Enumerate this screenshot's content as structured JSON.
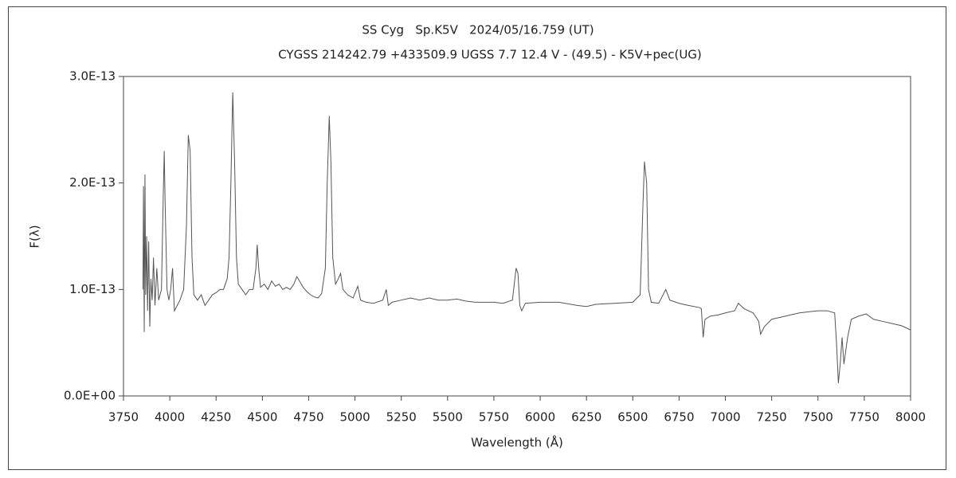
{
  "chart_data": {
    "type": "line",
    "title": "SS Cyg   Sp.K5V   2024/05/16.759 (UT)",
    "subtitle": "CYGSS 214242.79 +433509.9 UGSS 7.7 12.4 V - (49.5) - K5V+pec(UG)",
    "x_label": "Wavelength (Å)",
    "y_label": "F(λ)",
    "xlim": [
      3750,
      8000
    ],
    "xticks": [
      3750,
      4000,
      4250,
      4500,
      4750,
      5000,
      5250,
      5500,
      5750,
      6000,
      6250,
      6500,
      6750,
      7000,
      7250,
      7500,
      7750,
      8000
    ],
    "ylim": [
      0,
      3e-13
    ],
    "yticks": [
      {
        "value": 0,
        "label": "0.0E+00"
      },
      {
        "value": 1e-13,
        "label": "1.0E-13"
      },
      {
        "value": 2e-13,
        "label": "2.0E-13"
      },
      {
        "value": 3e-13,
        "label": "3.0E-13"
      }
    ],
    "grid": false,
    "x": [
      3855,
      3858,
      3862,
      3866,
      3870,
      3875,
      3880,
      3886,
      3892,
      3898,
      3905,
      3912,
      3920,
      3930,
      3940,
      3955,
      3965,
      3970,
      3975,
      3985,
      3995,
      4005,
      4015,
      4025,
      4040,
      4055,
      4075,
      4090,
      4100,
      4110,
      4120,
      4130,
      4150,
      4170,
      4190,
      4210,
      4230,
      4250,
      4270,
      4290,
      4310,
      4320,
      4330,
      4340,
      4350,
      4360,
      4370,
      4390,
      4410,
      4430,
      4450,
      4465,
      4472,
      4480,
      4490,
      4510,
      4530,
      4550,
      4570,
      4590,
      4610,
      4630,
      4650,
      4670,
      4686,
      4700,
      4720,
      4740,
      4760,
      4780,
      4800,
      4820,
      4840,
      4850,
      4861,
      4870,
      4880,
      4895,
      4910,
      4922,
      4935,
      4960,
      4990,
      5015,
      5030,
      5060,
      5100,
      5150,
      5169,
      5180,
      5200,
      5250,
      5300,
      5350,
      5400,
      5450,
      5500,
      5550,
      5600,
      5650,
      5700,
      5750,
      5800,
      5850,
      5870,
      5880,
      5890,
      5900,
      5920,
      6000,
      6100,
      6200,
      6250,
      6300,
      6400,
      6500,
      6540,
      6555,
      6563,
      6575,
      6585,
      6600,
      6640,
      6678,
      6700,
      6750,
      6800,
      6860,
      6870,
      6880,
      6890,
      6920,
      6960,
      7000,
      7050,
      7070,
      7100,
      7150,
      7180,
      7190,
      7210,
      7250,
      7300,
      7350,
      7400,
      7450,
      7500,
      7550,
      7590,
      7600,
      7610,
      7620,
      7630,
      7640,
      7660,
      7680,
      7720,
      7760,
      7800,
      7850,
      7900,
      7950,
      8000
    ],
    "series": [
      {
        "name": "SS Cyg",
        "color": "#555555",
        "values": [
          1e-13,
          1.97e-13,
          6e-14,
          2.08e-13,
          9.5e-14,
          1.5e-13,
          8e-14,
          1.45e-13,
          6.5e-14,
          1.1e-13,
          9e-14,
          1.3e-13,
          8.5e-14,
          1.2e-13,
          9e-14,
          1e-13,
          1.9e-13,
          2.3e-13,
          1.8e-13,
          1e-13,
          9e-14,
          1e-13,
          1.2e-13,
          8e-14,
          8.5e-14,
          9e-14,
          1e-13,
          1.6e-13,
          2.45e-13,
          2.3e-13,
          1.3e-13,
          9.5e-14,
          9e-14,
          9.5e-14,
          8.5e-14,
          9e-14,
          9.5e-14,
          9.7e-14,
          1e-13,
          1e-13,
          1.1e-13,
          1.3e-13,
          2e-13,
          2.85e-13,
          2.2e-13,
          1.3e-13,
          1.05e-13,
          1e-13,
          9.5e-14,
          1e-13,
          1e-13,
          1.2e-13,
          1.42e-13,
          1.2e-13,
          1.02e-13,
          1.05e-13,
          1e-13,
          1.08e-13,
          1.03e-13,
          1.05e-13,
          1e-13,
          1.02e-13,
          1e-13,
          1.05e-13,
          1.12e-13,
          1.08e-13,
          1.02e-13,
          9.8e-14,
          9.5e-14,
          9.3e-14,
          9.2e-14,
          9.6e-14,
          1.2e-13,
          2e-13,
          2.63e-13,
          2.2e-13,
          1.3e-13,
          1.05e-13,
          1.1e-13,
          1.15e-13,
          1e-13,
          9.5e-14,
          9.2e-14,
          1.03e-13,
          9e-14,
          8.8e-14,
          8.7e-14,
          9e-14,
          1e-13,
          8.5e-14,
          8.8e-14,
          9e-14,
          9.2e-14,
          9e-14,
          9.2e-14,
          9e-14,
          9e-14,
          9.1e-14,
          8.9e-14,
          8.8e-14,
          8.8e-14,
          8.8e-14,
          8.7e-14,
          9e-14,
          1.2e-13,
          1.15e-13,
          8.5e-14,
          8e-14,
          8.7e-14,
          8.8e-14,
          8.8e-14,
          8.5e-14,
          8.4e-14,
          8.6e-14,
          8.7e-14,
          8.8e-14,
          9.5e-14,
          1.8e-13,
          2.2e-13,
          2e-13,
          1e-13,
          8.8e-14,
          8.7e-14,
          1e-13,
          9e-14,
          8.7e-14,
          8.5e-14,
          8.3e-14,
          8.2e-14,
          5.5e-14,
          7.2e-14,
          7.5e-14,
          7.6e-14,
          7.8e-14,
          8e-14,
          8.7e-14,
          8.2e-14,
          7.8e-14,
          7e-14,
          5.8e-14,
          6.5e-14,
          7.2e-14,
          7.4e-14,
          7.6e-14,
          7.8e-14,
          7.9e-14,
          8e-14,
          8e-14,
          7.8e-14,
          5e-14,
          1.2e-14,
          3e-14,
          5.5e-14,
          3e-14,
          5.5e-14,
          7.2e-14,
          7.5e-14,
          7.7e-14,
          7.2e-14,
          7e-14,
          6.8e-14,
          6.6e-14,
          6.2e-14
        ]
      }
    ]
  }
}
